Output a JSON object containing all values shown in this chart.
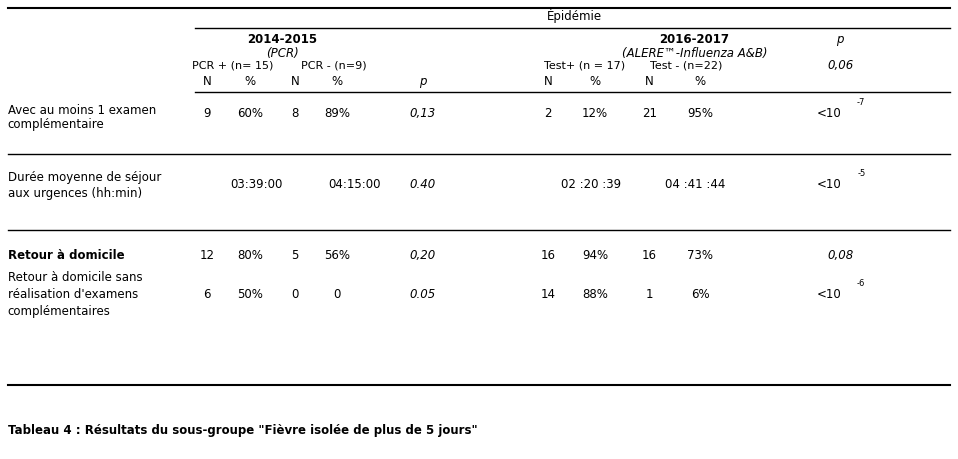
{
  "title": "Tableau 4 : Résultats du sous-groupe \"Fièvre isolée de plus de 5 jours\"",
  "epidemie_label": "Épidémie",
  "col_2014_label": "2014-2015",
  "col_2014_sub": "(PCR)",
  "col_2014_pos": "PCR + (n= 15)",
  "col_2014_neg": "PCR - (n=9)",
  "col_2016_label": "2016-2017",
  "col_2016_sub": "(ALERE™-Influenza A&B)",
  "col_2016_pos": "Test+ (n = 17)",
  "col_2016_neg": "Test - (n=22)",
  "p_header_italic": "p",
  "p_header2_italic": "0,06",
  "rows": [
    {
      "label_lines": [
        "Avec au moins 1 examen",
        "complémentaire"
      ],
      "bold": false,
      "n1": "9",
      "pct1": "60%",
      "n2": "8",
      "pct2": "89%",
      "p": "0,13",
      "n3": "2",
      "pct3": "12%",
      "n4": "21",
      "pct4": "95%",
      "pfinal_base": "<10",
      "pfinal_exp": "-7"
    },
    {
      "label_lines": [
        "Durée moyenne de séjour",
        "aux urgences (hh:min)"
      ],
      "bold": false,
      "merged": true,
      "val1": "03:39:00",
      "val2": "04:15:00",
      "p": "0.40",
      "val3": "02 :20 :39",
      "val4": "04 :41 :44",
      "pfinal_base": "<10",
      "pfinal_exp": "-5"
    },
    {
      "label_lines": [
        "Retour à domicile"
      ],
      "bold": true,
      "n1": "12",
      "pct1": "80%",
      "n2": "5",
      "pct2": "56%",
      "p": "0,20",
      "n3": "16",
      "pct3": "94%",
      "n4": "16",
      "pct4": "73%",
      "pfinal_base": "0,08",
      "pfinal_exp": ""
    },
    {
      "label_lines": [
        "Retour à domicile sans",
        "réalisation d'examens",
        "complémentaires"
      ],
      "bold": false,
      "n1": "6",
      "pct1": "50%",
      "n2": "0",
      "pct2": "0",
      "p": "0.05",
      "n3": "14",
      "pct3": "88%",
      "n4": "1",
      "pct4": "6%",
      "pfinal_base": "<10",
      "pfinal_exp": "-6"
    }
  ],
  "fs": 8.5,
  "fs_small": 6.0,
  "fs_caption": 8.5
}
